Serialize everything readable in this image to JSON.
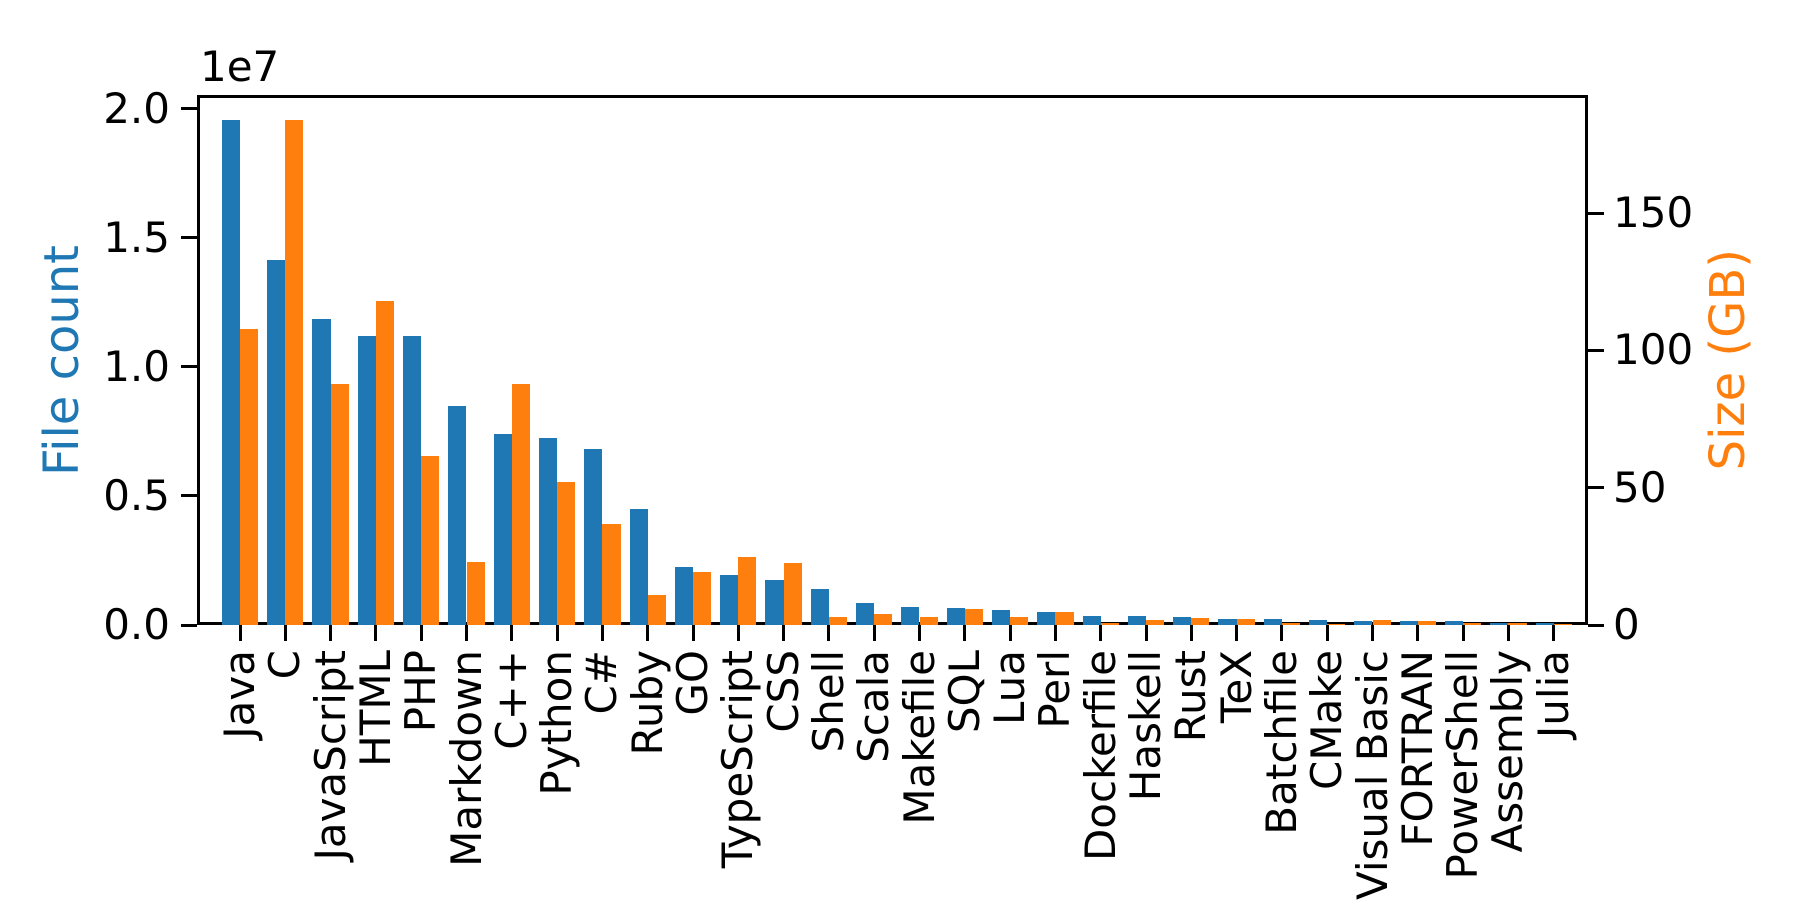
{
  "chart_data": {
    "type": "bar",
    "title": "",
    "categories": [
      "Java",
      "C",
      "JavaScript",
      "HTML",
      "PHP",
      "Markdown",
      "C++",
      "Python",
      "C#",
      "Ruby",
      "GO",
      "TypeScript",
      "CSS",
      "Shell",
      "Scala",
      "Makefile",
      "SQL",
      "Lua",
      "Perl",
      "Dockerfile",
      "Haskell",
      "Rust",
      "TeX",
      "Batchfile",
      "CMake",
      "Visual Basic",
      "FORTRAN",
      "PowerShell",
      "Assembly",
      "Julia"
    ],
    "series": [
      {
        "name": "File count",
        "axis": "left",
        "color": "#1f77b4",
        "values": [
          19548190,
          14143113,
          11839883,
          11178557,
          11177610,
          8464626,
          7380520,
          7226626,
          6811652,
          4473331,
          2265436,
          1940406,
          1734406,
          1385648,
          835755,
          679430,
          656671,
          578554,
          497949,
          366505,
          340623,
          322431,
          251015,
          236945,
          175282,
          155652,
          142038,
          136846,
          82905,
          58317
        ]
      },
      {
        "name": "Size (GB)",
        "axis": "right",
        "color": "#ff7f0e",
        "values": [
          107.7,
          183.83,
          87.82,
          118.12,
          61.41,
          23.09,
          87.73,
          52.03,
          36.83,
          10.95,
          19.28,
          24.59,
          22.67,
          3.01,
          3.87,
          2.92,
          5.67,
          2.81,
          4.7,
          0.71,
          1.85,
          2.68,
          2.15,
          0.7,
          0.54,
          1.91,
          1.62,
          0.69,
          0.78,
          0.29
        ]
      }
    ],
    "left_axis": {
      "label": "File count",
      "color": "#1f77b4",
      "offset_label": "1e7",
      "ticks": [
        {
          "label": "0.0",
          "value": 0
        },
        {
          "label": "0.5",
          "value": 5000000
        },
        {
          "label": "1.0",
          "value": 10000000
        },
        {
          "label": "1.5",
          "value": 15000000
        },
        {
          "label": "2.0",
          "value": 20000000
        }
      ],
      "range": [
        0,
        20525600
      ]
    },
    "right_axis": {
      "label": "Size (GB)",
      "color": "#ff7f0e",
      "ticks": [
        {
          "label": "0",
          "value": 0
        },
        {
          "label": "50",
          "value": 50
        },
        {
          "label": "100",
          "value": 100
        },
        {
          "label": "150",
          "value": 150
        }
      ],
      "range": [
        0,
        193.02
      ]
    },
    "grid": false,
    "legend": "none",
    "bar_width_fraction": 0.4
  }
}
